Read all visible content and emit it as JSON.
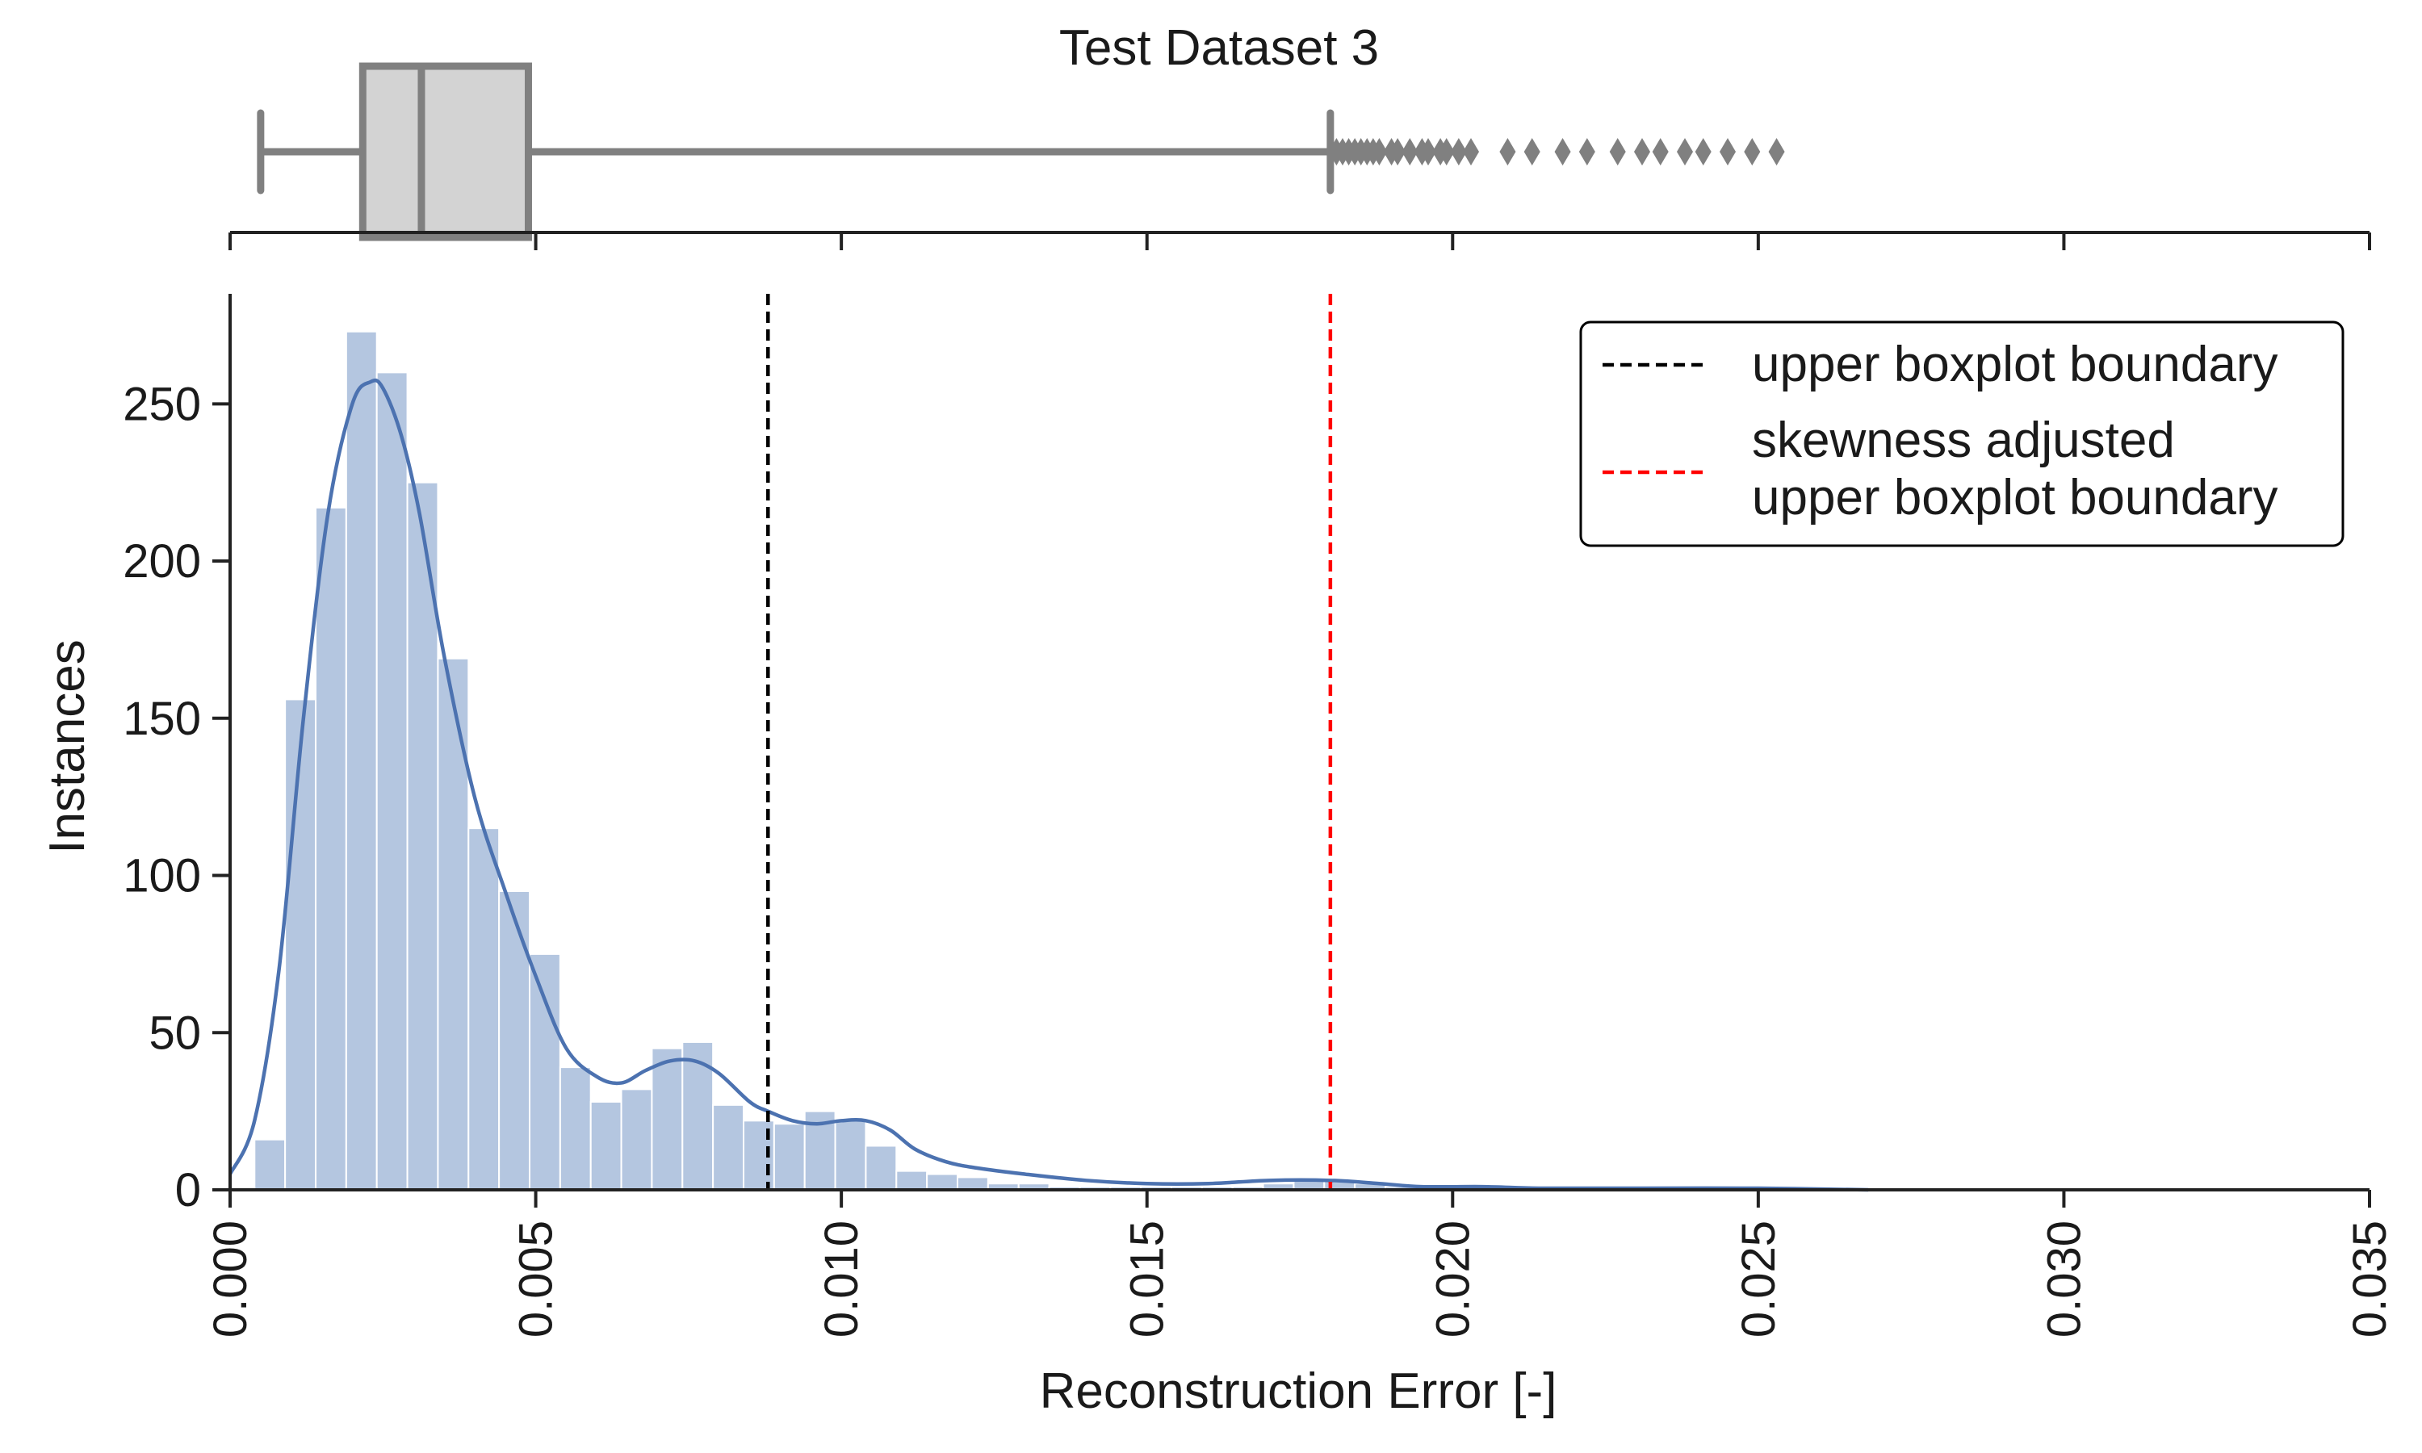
{
  "chart_data": [
    {
      "type": "box",
      "title": "Test Dataset 3",
      "xlim": [
        0.0,
        0.035
      ],
      "box": {
        "whisker_low": 0.0005,
        "q1": 0.00217,
        "median": 0.00313,
        "q3": 0.00488,
        "whisker_high": 0.018,
        "fill": "#d3d3d3",
        "stroke": "#808080"
      },
      "outliers": [
        0.0181,
        0.0182,
        0.0183,
        0.0184,
        0.0185,
        0.0186,
        0.0187,
        0.0188,
        0.019,
        0.0191,
        0.0193,
        0.0195,
        0.0196,
        0.0198,
        0.0199,
        0.0201,
        0.0203,
        0.0209,
        0.0213,
        0.0218,
        0.0222,
        0.0227,
        0.0231,
        0.0234,
        0.0238,
        0.0241,
        0.0245,
        0.0249,
        0.0253
      ]
    },
    {
      "type": "histogram",
      "xlabel": "Reconstruction Error [-]",
      "ylabel": "Instances",
      "xlim": [
        0.0,
        0.035
      ],
      "ylim": [
        0,
        285
      ],
      "xticks": [
        "0.000",
        "0.005",
        "0.010",
        "0.015",
        "0.020",
        "0.025",
        "0.030",
        "0.035"
      ],
      "xtick_values": [
        0.0,
        0.005,
        0.01,
        0.015,
        0.02,
        0.025,
        0.03,
        0.035
      ],
      "yticks": [
        "0",
        "50",
        "100",
        "150",
        "200",
        "250"
      ],
      "ytick_values": [
        0,
        50,
        100,
        150,
        200,
        250
      ],
      "bar_color": "#b4c6e0",
      "kde_color": "#4c72b0",
      "bin_width": 0.0005,
      "bins_start": [
        0.0004,
        0.0009,
        0.0014,
        0.0019,
        0.0024,
        0.0029,
        0.0034,
        0.0039,
        0.0044,
        0.0049,
        0.0054,
        0.0059,
        0.0064,
        0.0069,
        0.0074,
        0.0079,
        0.0084,
        0.0089,
        0.0094,
        0.0099,
        0.0104,
        0.0109,
        0.0114,
        0.0119,
        0.0124,
        0.0129,
        0.0134,
        0.0139,
        0.0144,
        0.0149,
        0.0154,
        0.0159,
        0.0164,
        0.0169,
        0.0174,
        0.0179,
        0.0184,
        0.0189,
        0.0194,
        0.0199,
        0.0204,
        0.0209,
        0.0214,
        0.0219,
        0.0224,
        0.0229,
        0.0234,
        0.0239,
        0.0244,
        0.0249,
        0.0254,
        0.0259,
        0.0264
      ],
      "counts": [
        16,
        156,
        217,
        273,
        260,
        225,
        169,
        115,
        95,
        75,
        39,
        28,
        32,
        45,
        47,
        27,
        22,
        21,
        25,
        22,
        14,
        6,
        5,
        4,
        2,
        2,
        1,
        1,
        1,
        1,
        1,
        1,
        1,
        2,
        3,
        3,
        2,
        1,
        1,
        1,
        1,
        0,
        0,
        1,
        0,
        1,
        0,
        0,
        0,
        1,
        0,
        0,
        0
      ],
      "kde": {
        "x": [
          0.0,
          0.0004,
          0.0008,
          0.0012,
          0.0016,
          0.002,
          0.0023,
          0.0025,
          0.0028,
          0.0031,
          0.0035,
          0.004,
          0.0045,
          0.005,
          0.0055,
          0.006,
          0.0064,
          0.0068,
          0.0072,
          0.0076,
          0.008,
          0.0085,
          0.0088,
          0.0092,
          0.0096,
          0.01,
          0.0104,
          0.0108,
          0.0112,
          0.0117,
          0.0122,
          0.013,
          0.014,
          0.015,
          0.016,
          0.017,
          0.018,
          0.0188,
          0.0195,
          0.0205,
          0.0215,
          0.023,
          0.025,
          0.0268
        ],
        "y": [
          5,
          22,
          70,
          150,
          215,
          250,
          257,
          255,
          240,
          215,
          170,
          125,
          95,
          68,
          45,
          36,
          34,
          38,
          41,
          41,
          37,
          28,
          25,
          22,
          21,
          22,
          22,
          19,
          13,
          9,
          7,
          5,
          3,
          2,
          2,
          3,
          3,
          2,
          1,
          1,
          0.5,
          0.5,
          0.5,
          0
        ]
      },
      "vlines": [
        {
          "x": 0.0088,
          "color": "#000000",
          "style": "dashed",
          "label": "upper boxplot boundary"
        },
        {
          "x": 0.018,
          "color": "#ff0000",
          "style": "dashed",
          "label": "skewness adjusted upper boxplot boundary"
        }
      ],
      "legend": {
        "placement": "upper-right",
        "entries": [
          {
            "lines": [
              "upper boxplot boundary"
            ],
            "color": "#000000"
          },
          {
            "lines": [
              "skewness adjusted",
              "upper boxplot boundary"
            ],
            "color": "#ff0000"
          }
        ]
      }
    }
  ]
}
